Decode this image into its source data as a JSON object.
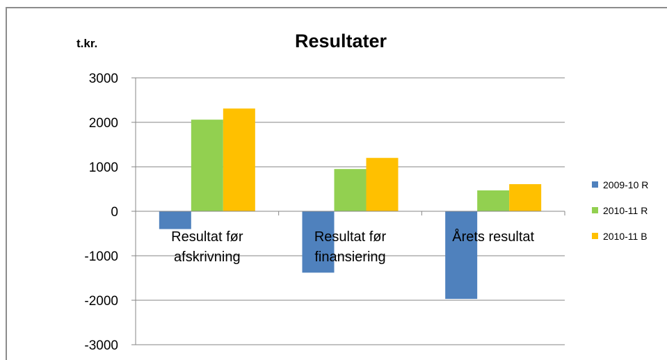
{
  "chart_data": {
    "type": "bar",
    "title": "Resultater",
    "unit_label": "t.kr.",
    "categories": [
      [
        "Resultat før",
        "afskrivning"
      ],
      [
        "Resultat før",
        "finansiering"
      ],
      [
        "Årets resultat"
      ]
    ],
    "series": [
      {
        "name": "2009-10 R",
        "color": "#4f81bd",
        "values": [
          -400,
          -1380,
          -1970
        ]
      },
      {
        "name": "2010-11 R",
        "color": "#92d050",
        "values": [
          2060,
          950,
          470
        ]
      },
      {
        "name": "2010-11 B",
        "color": "#ffc000",
        "values": [
          2310,
          1200,
          610
        ]
      }
    ],
    "ylim": [
      -3000,
      3000
    ],
    "yticks": [
      "3000",
      "2000",
      "1000",
      "0",
      "-1000",
      "-2000",
      "-3000"
    ],
    "grid": true,
    "legend_position": "right"
  }
}
